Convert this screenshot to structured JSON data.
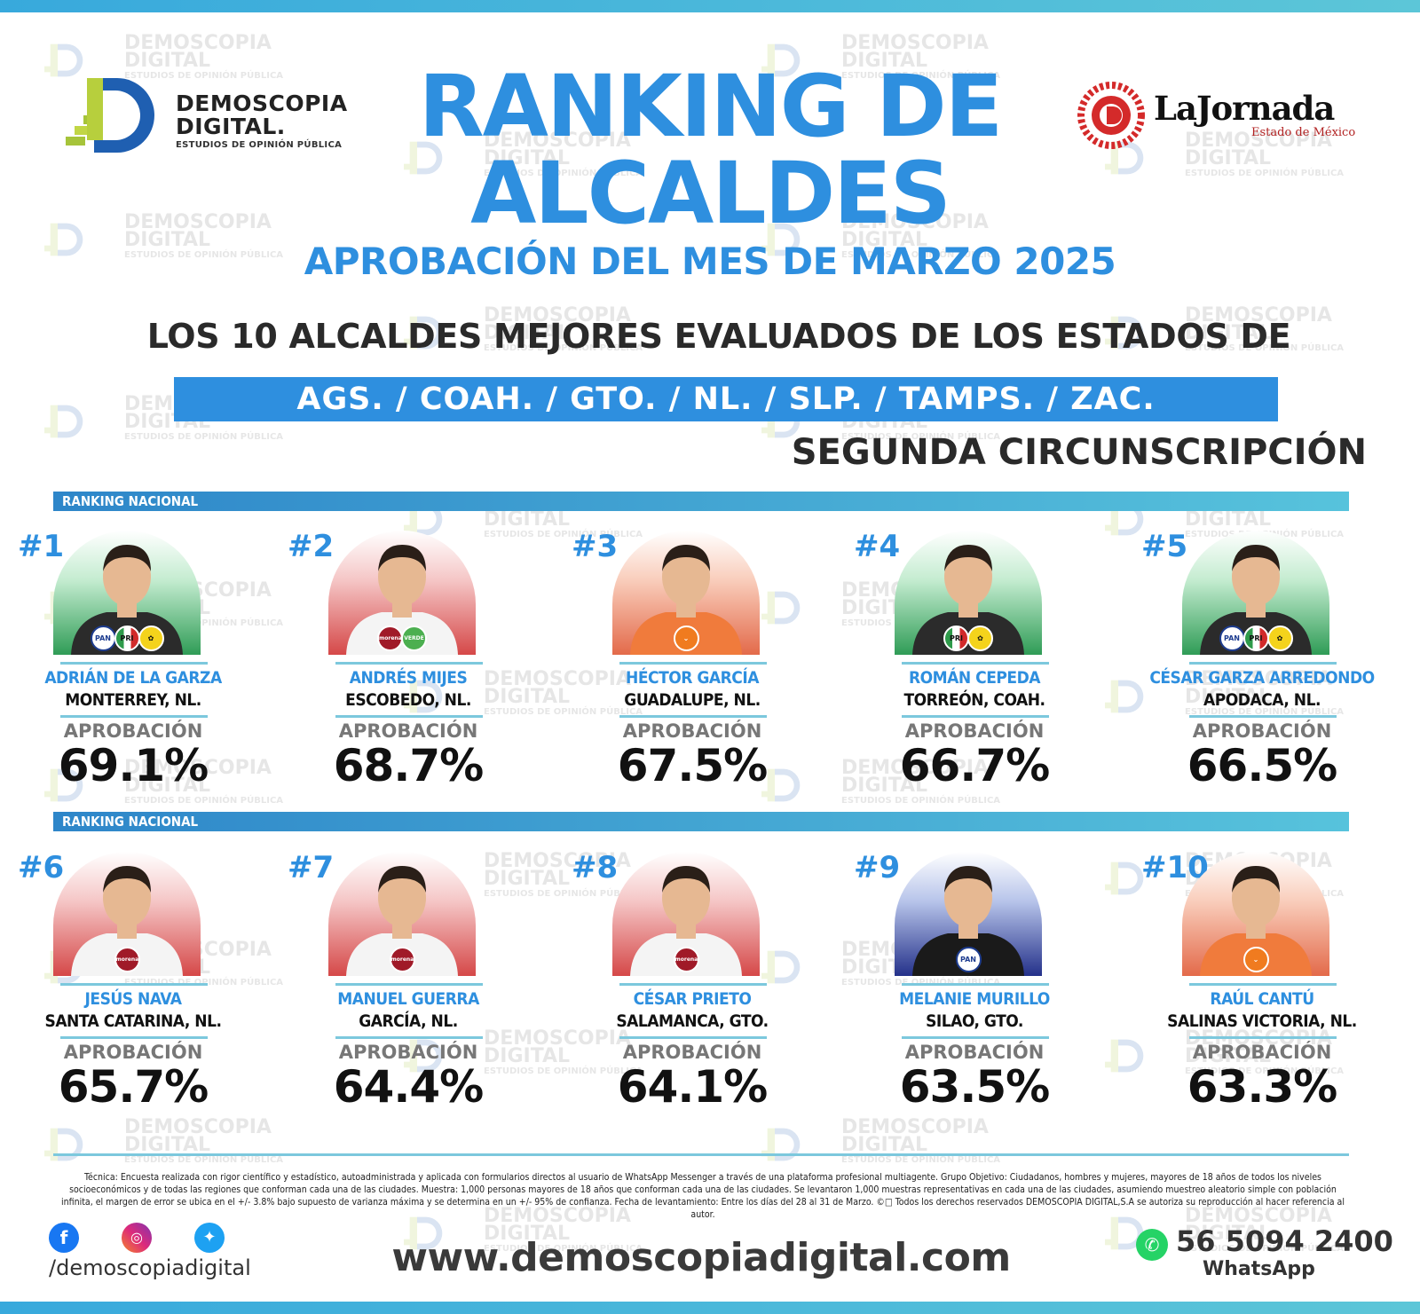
{
  "brand": {
    "name_line1": "DEMOSCOPIA",
    "name_line2": "DIGITAL.",
    "tagline": "ESTUDIOS DE OPINIÓN PÚBLICA",
    "watermark_line1": "DEMOSCOPIA",
    "watermark_line2": "DIGITAL",
    "watermark_line3": "ESTUDIOS DE OPINIÓN PÚBLICA"
  },
  "partner": {
    "name": "LaJornada",
    "sub": "Estado de México"
  },
  "header": {
    "title_line1": "RANKING DE",
    "title_line2": "ALCALDES",
    "subtitle": "APROBACIÓN DEL MES DE MARZO 2025",
    "intro": "LOS 10 ALCALDES MEJORES EVALUADOS DE LOS ESTADOS DE",
    "states": "AGS. /  COAH.  /  GTO.  /  NL.  /  SLP.  /  TAMPS.  /  ZAC.",
    "region": "SEGUNDA CIRCUNSCRIPCIÓN"
  },
  "section_label": "RANKING NACIONAL",
  "approval_label": "APROBACIÓN",
  "ranking": [
    {
      "rank": "#1",
      "name": "ADRIÁN DE LA GARZA",
      "city": "MONTERREY, NL.",
      "approval": "69.1%",
      "approval_value": 69.1,
      "bg": "green",
      "parties": [
        "PAN",
        "PRI",
        "PRD"
      ]
    },
    {
      "rank": "#2",
      "name": "ANDRÉS MIJES",
      "city": "ESCOBEDO, NL.",
      "approval": "68.7%",
      "approval_value": 68.7,
      "bg": "red",
      "parties": [
        "morena",
        "VERDE"
      ]
    },
    {
      "rank": "#3",
      "name": "HÉCTOR GARCÍA",
      "city": "GUADALUPE, NL.",
      "approval": "67.5%",
      "approval_value": 67.5,
      "bg": "orange",
      "parties": [
        "MC"
      ]
    },
    {
      "rank": "#4",
      "name": "ROMÁN CEPEDA",
      "city": "TORREÓN, COAH.",
      "approval": "66.7%",
      "approval_value": 66.7,
      "bg": "green",
      "parties": [
        "PRI",
        "PRD"
      ]
    },
    {
      "rank": "#5",
      "name": "CÉSAR GARZA ARREDONDO",
      "city": "APODACA, NL.",
      "approval": "66.5%",
      "approval_value": 66.5,
      "bg": "green",
      "parties": [
        "PAN",
        "PRI",
        "PRD"
      ]
    },
    {
      "rank": "#6",
      "name": "JESÚS NAVA",
      "city": "SANTA CATARINA, NL.",
      "approval": "65.7%",
      "approval_value": 65.7,
      "bg": "red",
      "parties": [
        "morena"
      ]
    },
    {
      "rank": "#7",
      "name": "MANUEL GUERRA",
      "city": "GARCÍA, NL.",
      "approval": "64.4%",
      "approval_value": 64.4,
      "bg": "red",
      "parties": [
        "morena"
      ]
    },
    {
      "rank": "#8",
      "name": "CÉSAR PRIETO",
      "city": "SALAMANCA, GTO.",
      "approval": "64.1%",
      "approval_value": 64.1,
      "bg": "red",
      "parties": [
        "morena"
      ]
    },
    {
      "rank": "#9",
      "name": "MELANIE MURILLO",
      "city": "SILAO, GTO.",
      "approval": "63.5%",
      "approval_value": 63.5,
      "bg": "blue",
      "parties": [
        "PAN"
      ]
    },
    {
      "rank": "#10",
      "name": "RAÚL CANTÚ",
      "city": "SALINAS VICTORIA, NL.",
      "approval": "63.3%",
      "approval_value": 63.3,
      "bg": "orange",
      "parties": [
        "MC"
      ]
    }
  ],
  "footer": {
    "methodology": "Técnica: Encuesta realizada con rigor científico y estadístico, autoadministrada y aplicada con formularios directos al usuario de WhatsApp Messenger a través de una plataforma profesional multiagente. Grupo Objetivo: Ciudadanos, hombres y mujeres, mayores de 18 años de todos los niveles socioeconómicos y de todas las regiones que conforman cada una de las ciudades. Muestra: 1,000 personas mayores de 18 años que conforman cada una de las ciudades. Se levantaron 1,000 muestras representativas en cada una de las ciudades, asumiendo muestreo aleatorio simple con población infinita, el margen de error se ubica en el +/- 3.8% bajo supuesto de varianza máxima y se determina en un +/- 95% de confianza. Fecha de levantamiento: Entre los días del 28 al 31 de Marzo. ©□ Todos los derechos reservados DEMOSCOPIA DIGITAL,S.A se autoriza su reproducción al hacer referencia al autor.",
    "handle": "/demoscopiadigital",
    "website": "www.demoscopiadigital.com",
    "phone": "56 5094 2400",
    "whatsapp_label": "WhatsApp"
  },
  "colors": {
    "accent_blue": "#2e8fdf",
    "bar_teal": "#57c3dc",
    "text_dark": "#2a2a2a"
  }
}
